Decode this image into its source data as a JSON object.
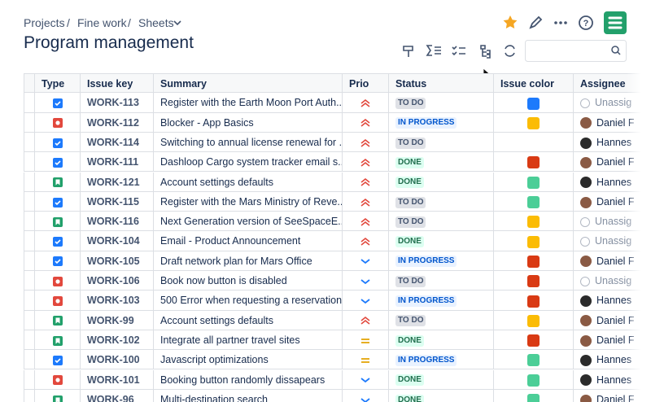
{
  "header": {
    "breadcrumbs": [
      "Projects",
      "Fine work",
      "Sheets"
    ],
    "title": "Program management"
  },
  "table": {
    "columns": [
      "Type",
      "Issue key",
      "Summary",
      "Prio",
      "Status",
      "Issue color",
      "Assignee"
    ],
    "rows": [
      {
        "type": "task",
        "key": "WORK-113",
        "summary": "Register with the Earth Moon Port Auth...",
        "prio": "highest",
        "status": "TO DO",
        "color": "#1d7afc",
        "assignee": "Unassig",
        "avatar": "none"
      },
      {
        "type": "bug",
        "key": "WORK-112",
        "summary": "Blocker - App Basics",
        "prio": "highest",
        "status": "IN PROGRESS",
        "color": "#fbbc05",
        "assignee": "Daniel F",
        "avatar": "#8a5a44"
      },
      {
        "type": "task",
        "key": "WORK-114",
        "summary": "Switching to annual license renewal for ...",
        "prio": "highest",
        "status": "TO DO",
        "color": null,
        "assignee": "Hannes",
        "avatar": "#2b2b2b"
      },
      {
        "type": "task",
        "key": "WORK-111",
        "summary": "Dashloop Cargo system tracker email s...",
        "prio": "highest",
        "status": "DONE",
        "color": "#d93a14",
        "assignee": "Daniel F",
        "avatar": "#8a5a44"
      },
      {
        "type": "story",
        "key": "WORK-121",
        "summary": "Account settings defaults",
        "prio": "highest",
        "status": "DONE",
        "color": "#4bce97",
        "assignee": "Hannes",
        "avatar": "#2b2b2b"
      },
      {
        "type": "task",
        "key": "WORK-115",
        "summary": "Register with the Mars Ministry of Reve...",
        "prio": "highest",
        "status": "TO DO",
        "color": "#4bce97",
        "assignee": "Daniel F",
        "avatar": "#8a5a44"
      },
      {
        "type": "story",
        "key": "WORK-116",
        "summary": "Next Generation version of SeeSpaceE...",
        "prio": "highest",
        "status": "TO DO",
        "color": "#fbbc05",
        "assignee": "Unassig",
        "avatar": "none"
      },
      {
        "type": "task",
        "key": "WORK-104",
        "summary": "Email - Product Announcement",
        "prio": "highest",
        "status": "DONE",
        "color": "#fbbc05",
        "assignee": "Unassig",
        "avatar": "none"
      },
      {
        "type": "task",
        "key": "WORK-105",
        "summary": "Draft network plan for Mars Office",
        "prio": "low",
        "status": "IN PROGRESS",
        "color": "#d93a14",
        "assignee": "Daniel F",
        "avatar": "#8a5a44"
      },
      {
        "type": "bug",
        "key": "WORK-106",
        "summary": "Book now button is disabled",
        "prio": "low",
        "status": "TO DO",
        "color": "#d93a14",
        "assignee": "Unassig",
        "avatar": "none"
      },
      {
        "type": "bug",
        "key": "WORK-103",
        "summary": "500 Error when requesting a reservation",
        "prio": "low",
        "status": "IN PROGRESS",
        "color": "#d93a14",
        "assignee": "Hannes",
        "avatar": "#2b2b2b"
      },
      {
        "type": "story",
        "key": "WORK-99",
        "summary": "Account settings defaults",
        "prio": "highest",
        "status": "TO DO",
        "color": "#fbbc05",
        "assignee": "Daniel F",
        "avatar": "#8a5a44"
      },
      {
        "type": "story",
        "key": "WORK-102",
        "summary": "Integrate all partner travel sites",
        "prio": "medium",
        "status": "DONE",
        "color": "#d93a14",
        "assignee": "Daniel F",
        "avatar": "#8a5a44"
      },
      {
        "type": "task",
        "key": "WORK-100",
        "summary": "Javascript optimizations",
        "prio": "medium",
        "status": "IN PROGRESS",
        "color": "#4bce97",
        "assignee": "Hannes",
        "avatar": "#2b2b2b"
      },
      {
        "type": "bug",
        "key": "WORK-101",
        "summary": "Booking button randomly dissapears",
        "prio": "low",
        "status": "DONE",
        "color": "#4bce97",
        "assignee": "Hannes",
        "avatar": "#2b2b2b"
      },
      {
        "type": "story",
        "key": "WORK-96",
        "summary": "Multi-destination search",
        "prio": "low",
        "status": "DONE",
        "color": "#4bce97",
        "assignee": "Daniel F",
        "avatar": "#8a5a44"
      }
    ]
  }
}
